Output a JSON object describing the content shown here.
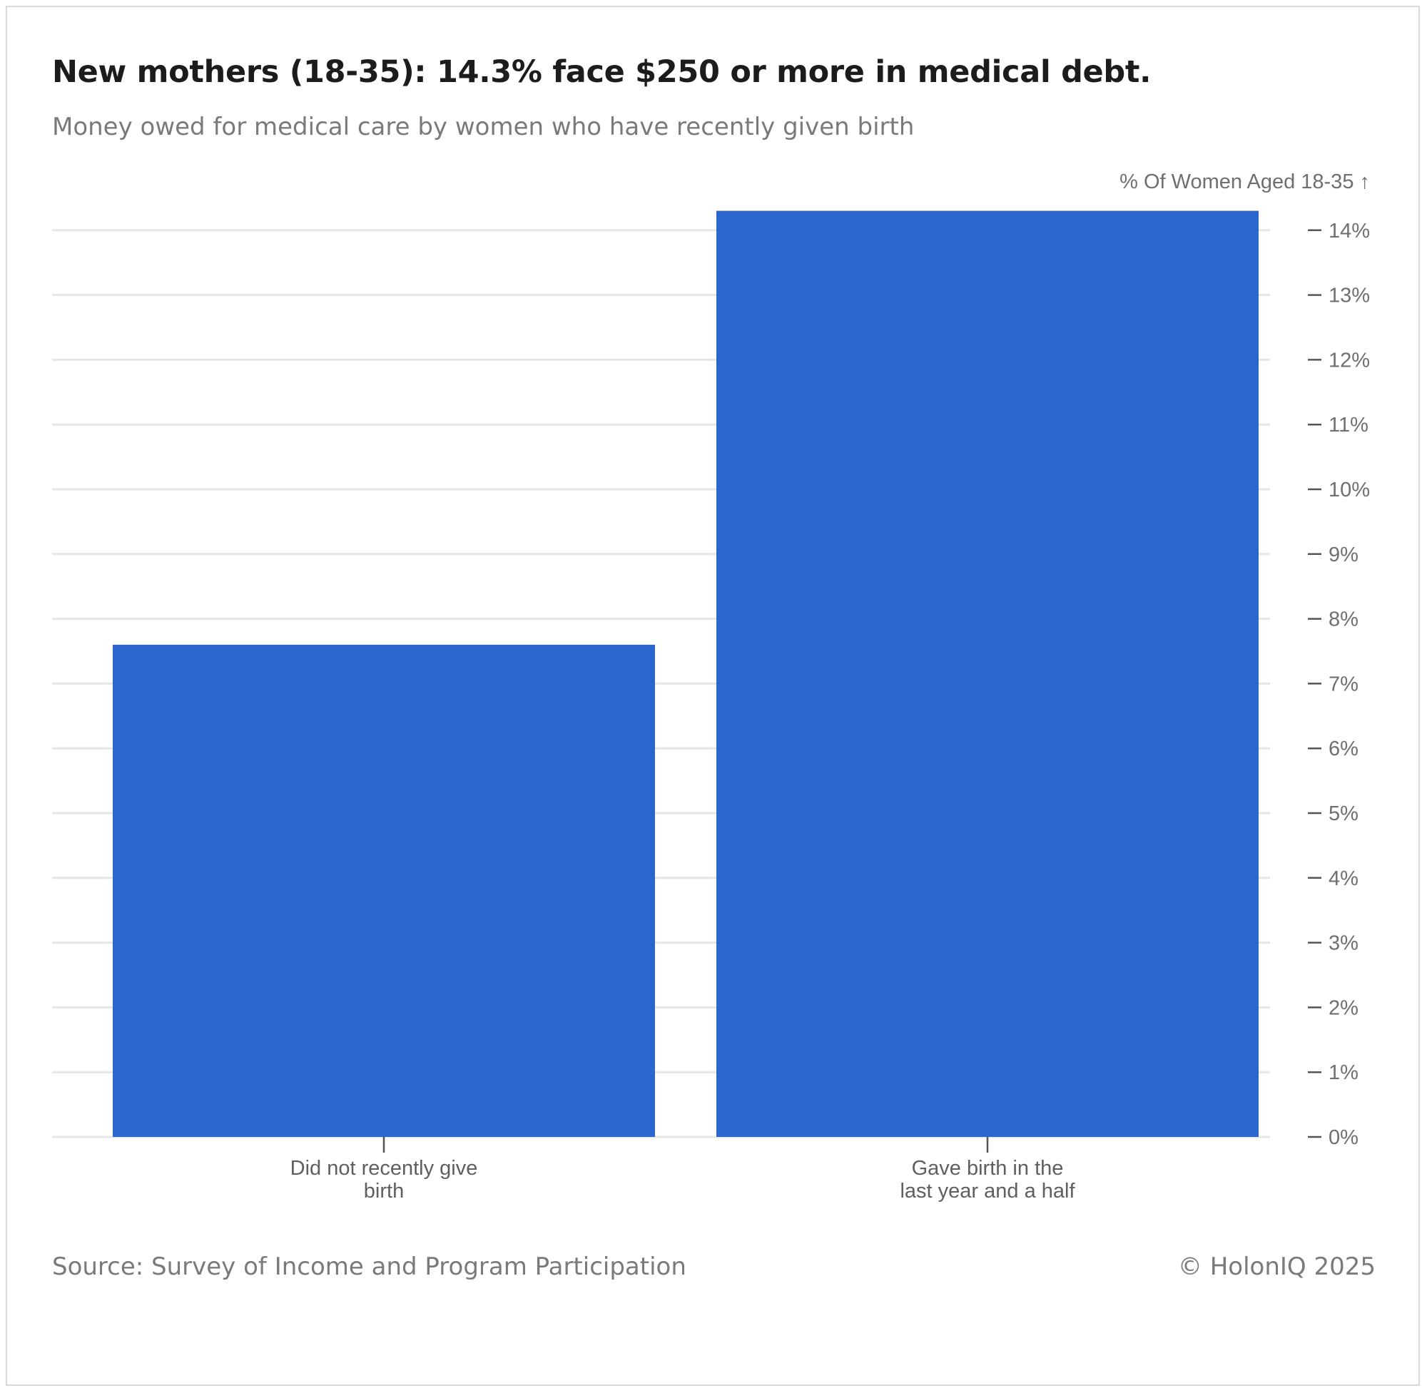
{
  "header": {
    "title": "New mothers (18-35): 14.3% face $250 or more in medical debt.",
    "subtitle": "Money owed for medical care by women who have recently given birth"
  },
  "footer": {
    "source": "Source: Survey of Income and Program Participation",
    "credit": "© HolonIQ 2025"
  },
  "chart_data": {
    "type": "bar",
    "title": "New mothers (18-35): 14.3% face $250 or more in medical debt.",
    "subtitle": "Money owed for medical care by women who have recently given birth",
    "ylabel": "% Of Women Aged 18-35 ↑",
    "y_axis_position": "right",
    "ylim": [
      0,
      14
    ],
    "y_ticks": [
      0,
      1,
      2,
      3,
      4,
      5,
      6,
      7,
      8,
      9,
      10,
      11,
      12,
      13,
      14
    ],
    "y_tick_suffix": "%",
    "grid": true,
    "categories": [
      [
        "Did not recently give",
        "birth"
      ],
      [
        "Gave birth in the",
        "last year and a half"
      ]
    ],
    "values": [
      7.6,
      14.3
    ],
    "bar_color": "#2a66cc",
    "grid_color": "#e6e6e6",
    "tick_color": "#555555"
  }
}
